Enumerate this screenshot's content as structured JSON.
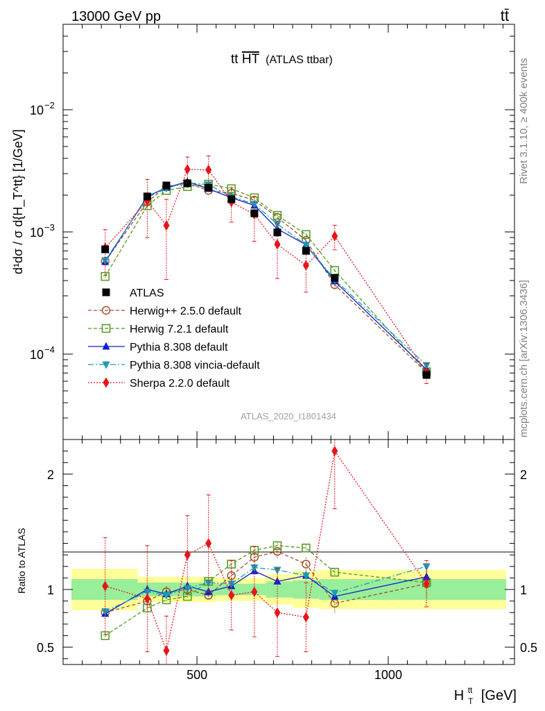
{
  "header": {
    "left": "13000 GeV pp",
    "right": "tt̄"
  },
  "side_labels": {
    "rivet": "Rivet 3.1.10, ≥ 400k events",
    "mcplots": "mcplots.cern.ch [arXiv:1306.3436]"
  },
  "chart_data": {
    "type": "line",
    "title_main": "tt",
    "title_overline": "HT",
    "title_suffix": "(ATLAS ttbar)",
    "analysis_id": "ATLAS_2020_I1801434",
    "xlabel": "H",
    "xlabel_sub": "T",
    "xlabel_sup": "tt",
    "xlabel_unit": "[GeV]",
    "ylabel_main": "d¹dσ / σ d{H_T^tt} [1/GeV]",
    "ylabel_ratio": "Ratio to ATLAS",
    "xlim": [
      150,
      1330
    ],
    "ylim_main": [
      2e-05,
      0.05
    ],
    "ylim_ratio": [
      0.35,
      2.3
    ],
    "x_ticks": [
      500,
      1000
    ],
    "y_ticks_main": [
      {
        "value": 0.01,
        "label": "10",
        "exp": "−2"
      },
      {
        "value": 0.001,
        "label": "10",
        "exp": "−3"
      },
      {
        "value": 0.0001,
        "label": "10",
        "exp": "−4"
      }
    ],
    "y_ticks_ratio": [
      {
        "value": 0.5,
        "label": "0.5"
      },
      {
        "value": 1,
        "label": "1"
      },
      {
        "value": 2,
        "label": "2"
      }
    ],
    "x": [
      260,
      370,
      420,
      475,
      530,
      590,
      650,
      710,
      785,
      860,
      1100
    ],
    "data": {
      "name": "ATLAS",
      "values": [
        0.00072,
        0.00195,
        0.0024,
        0.0025,
        0.0023,
        0.00185,
        0.00142,
        0.00099,
        0.0007,
        0.00042,
        6.75e-05
      ]
    },
    "bands": [
      {
        "x_lo": 150,
        "x_hi": 345,
        "stat_lo": 0.91,
        "stat_hi": 1.09,
        "tot_lo": 0.82,
        "tot_hi": 1.18
      },
      {
        "x_lo": 345,
        "x_hi": 550,
        "stat_lo": 0.94,
        "stat_hi": 1.06,
        "tot_lo": 0.89,
        "tot_hi": 1.11
      },
      {
        "x_lo": 550,
        "x_hi": 680,
        "stat_lo": 0.95,
        "stat_hi": 1.05,
        "tot_lo": 0.9,
        "tot_hi": 1.1
      },
      {
        "x_lo": 680,
        "x_hi": 750,
        "stat_lo": 0.93,
        "stat_hi": 1.07,
        "tot_lo": 0.87,
        "tot_hi": 1.13
      },
      {
        "x_lo": 750,
        "x_hi": 820,
        "stat_lo": 0.92,
        "stat_hi": 1.08,
        "tot_lo": 0.84,
        "tot_hi": 1.16
      },
      {
        "x_lo": 820,
        "x_hi": 1330,
        "stat_lo": 0.91,
        "stat_hi": 1.09,
        "tot_lo": 0.83,
        "tot_hi": 1.17
      }
    ],
    "series": [
      {
        "name": "Herwig++ 2.5.0 default",
        "color": "#a0522d",
        "dash": "5,3",
        "marker": "circle-open",
        "ratio": [
          0.8,
          0.9,
          0.98,
          1.0,
          0.95,
          1.12,
          1.28,
          1.33,
          1.22,
          0.88,
          1.05
        ],
        "err": [
          0.06,
          0.07,
          0.05,
          0.04,
          0.04,
          0.07,
          0.07,
          0.06,
          0.06,
          0.08,
          0.12
        ]
      },
      {
        "name": "Herwig 7.2.1 default",
        "color": "#4f9a1f",
        "dash": "5,3",
        "marker": "square-open",
        "ratio": [
          0.6,
          0.84,
          0.91,
          0.94,
          1.07,
          1.22,
          1.34,
          1.38,
          1.36,
          1.15,
          1.06
        ],
        "err": [
          0.02,
          0.03,
          0.02,
          0.02,
          0.02,
          0.03,
          0.03,
          0.03,
          0.03,
          0.03,
          0.05
        ]
      },
      {
        "name": "Pythia 8.308 default",
        "color": "#1020d0",
        "dash": "",
        "marker": "triangle-up",
        "ratio": [
          0.79,
          1.0,
          0.96,
          1.03,
          0.98,
          1.03,
          1.16,
          1.07,
          1.12,
          0.94,
          1.11
        ],
        "err": [
          0.02,
          0.02,
          0.02,
          0.02,
          0.02,
          0.02,
          0.02,
          0.02,
          0.02,
          0.03,
          0.05
        ]
      },
      {
        "name": "Pythia 8.308 vincia-default",
        "color": "#1a9bb5",
        "dash": "8,3,2,3",
        "marker": "triangle-down",
        "ratio": [
          0.81,
          0.98,
          0.95,
          1.01,
          1.06,
          1.05,
          1.19,
          1.17,
          1.12,
          0.97,
          1.2
        ],
        "err": [
          0.02,
          0.02,
          0.02,
          0.02,
          0.02,
          0.02,
          0.02,
          0.02,
          0.02,
          0.03,
          0.05
        ]
      },
      {
        "name": "Sherpa 2.2.0 default",
        "color": "#e8141b",
        "dash": "2,2",
        "marker": "diamond",
        "ratio": [
          1.03,
          0.92,
          0.47,
          1.3,
          1.4,
          0.95,
          0.98,
          0.8,
          0.76,
          2.2,
          1.05
        ],
        "err": [
          0.42,
          0.46,
          0.3,
          0.34,
          0.42,
          0.3,
          0.39,
          0.38,
          0.3,
          0.5,
          0.2
        ]
      }
    ]
  }
}
